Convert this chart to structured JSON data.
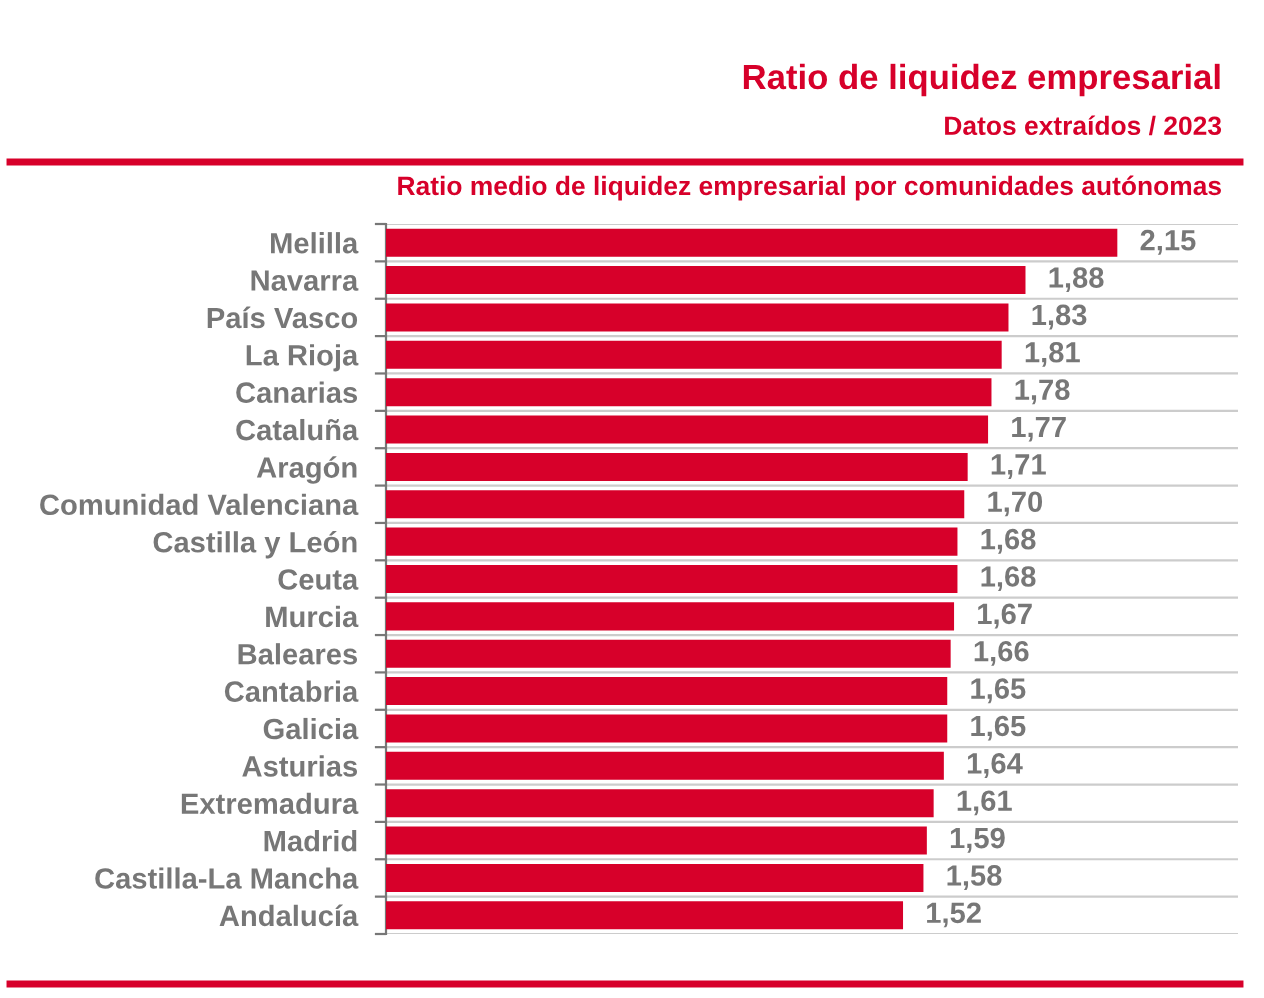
{
  "chart_data": {
    "type": "bar",
    "orientation": "horizontal",
    "title": "Ratio de liquidez empresarial",
    "subtitle": "Ratio medio de liquidez empresarial por comunidades autónomas",
    "annotations": [
      "Datos extraídos / 2023"
    ],
    "categories": [
      "Melilla",
      "Navarra",
      "País Vasco",
      "La Rioja",
      "Canarias",
      "Cataluña",
      "Aragón",
      "Comunidad Valenciana",
      "Castilla y León",
      "Ceuta",
      "Murcia",
      "Baleares",
      "Cantabria",
      "Galicia",
      "Asturias",
      "Extremadura",
      "Madrid",
      "Castilla-La Mancha",
      "Andalucía"
    ],
    "values": [
      2.15,
      1.88,
      1.83,
      1.81,
      1.78,
      1.77,
      1.71,
      1.7,
      1.68,
      1.68,
      1.67,
      1.66,
      1.65,
      1.65,
      1.64,
      1.61,
      1.59,
      1.58,
      1.52
    ],
    "value_labels": [
      "2,15",
      "1,88",
      "1,83",
      "1,81",
      "1,78",
      "1,77",
      "1,71",
      "1,70",
      "1,68",
      "1,68",
      "1,67",
      "1,66",
      "1,65",
      "1,65",
      "1,64",
      "1,61",
      "1,59",
      "1,58",
      "1,52"
    ],
    "color": "#d7002a",
    "grid": "y",
    "tick_labels": "y",
    "legend": false
  }
}
